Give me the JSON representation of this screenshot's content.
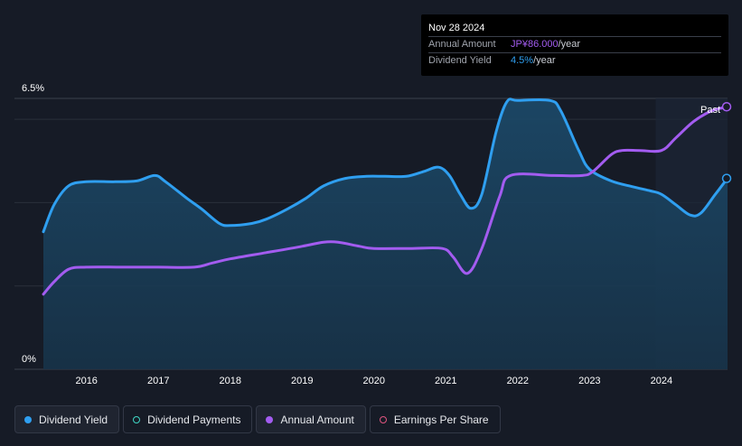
{
  "tooltip": {
    "date": "Nov 28 2024",
    "annual_amount_label": "Annual Amount",
    "annual_amount_value": "JP¥86.000",
    "annual_amount_unit": "/year",
    "dividend_yield_label": "Dividend Yield",
    "dividend_yield_value": "4.5%",
    "dividend_yield_unit": "/year"
  },
  "legend": [
    {
      "label": "Dividend Yield"
    },
    {
      "label": "Dividend Payments"
    },
    {
      "label": "Annual Amount"
    },
    {
      "label": "Earnings Per Share"
    }
  ],
  "colors": {
    "dividend_yield": "#2f9ff0",
    "dividend_payments": "#3fd7c4",
    "annual_amount": "#a35cf0",
    "earnings_per_share": "#e0557f"
  },
  "chart_data": {
    "type": "line",
    "title": "",
    "xlabel": "",
    "ylabel": "",
    "y_tick_labels": [
      "6.5%",
      "0%"
    ],
    "ylim": [
      0,
      6.5
    ],
    "xlim": [
      2015.4,
      2024.92
    ],
    "x_ticks": [
      2016,
      2017,
      2018,
      2019,
      2020,
      2021,
      2022,
      2023,
      2024
    ],
    "past_label": "Past",
    "past_region_start": 2023.92,
    "grid": true,
    "legend_position": "bottom",
    "series": [
      {
        "name": "Dividend Yield",
        "axis": "left",
        "points": [
          [
            2015.4,
            3.3
          ],
          [
            2015.55,
            3.95
          ],
          [
            2015.75,
            4.4
          ],
          [
            2016.0,
            4.5
          ],
          [
            2016.4,
            4.5
          ],
          [
            2016.7,
            4.52
          ],
          [
            2016.95,
            4.65
          ],
          [
            2017.1,
            4.5
          ],
          [
            2017.4,
            4.1
          ],
          [
            2017.6,
            3.85
          ],
          [
            2017.85,
            3.5
          ],
          [
            2018.0,
            3.45
          ],
          [
            2018.3,
            3.5
          ],
          [
            2018.5,
            3.6
          ],
          [
            2018.8,
            3.85
          ],
          [
            2019.05,
            4.1
          ],
          [
            2019.3,
            4.4
          ],
          [
            2019.6,
            4.58
          ],
          [
            2019.9,
            4.63
          ],
          [
            2020.15,
            4.63
          ],
          [
            2020.45,
            4.63
          ],
          [
            2020.7,
            4.75
          ],
          [
            2020.9,
            4.85
          ],
          [
            2021.05,
            4.65
          ],
          [
            2021.2,
            4.2
          ],
          [
            2021.35,
            3.86
          ],
          [
            2021.5,
            4.2
          ],
          [
            2021.7,
            5.7
          ],
          [
            2021.85,
            6.42
          ],
          [
            2022.0,
            6.45
          ],
          [
            2022.45,
            6.45
          ],
          [
            2022.6,
            6.2
          ],
          [
            2022.85,
            5.25
          ],
          [
            2023.0,
            4.8
          ],
          [
            2023.3,
            4.52
          ],
          [
            2023.6,
            4.38
          ],
          [
            2023.85,
            4.28
          ],
          [
            2024.0,
            4.2
          ],
          [
            2024.2,
            3.95
          ],
          [
            2024.4,
            3.7
          ],
          [
            2024.55,
            3.75
          ],
          [
            2024.75,
            4.2
          ],
          [
            2024.92,
            4.58
          ]
        ]
      },
      {
        "name": "Annual Amount",
        "axis": "right",
        "points": [
          [
            2015.4,
            1.8
          ],
          [
            2015.55,
            2.1
          ],
          [
            2015.75,
            2.4
          ],
          [
            2016.0,
            2.45
          ],
          [
            2016.5,
            2.45
          ],
          [
            2017.0,
            2.45
          ],
          [
            2017.5,
            2.45
          ],
          [
            2017.75,
            2.55
          ],
          [
            2018.0,
            2.65
          ],
          [
            2018.5,
            2.8
          ],
          [
            2019.0,
            2.95
          ],
          [
            2019.3,
            3.05
          ],
          [
            2019.5,
            3.05
          ],
          [
            2019.8,
            2.95
          ],
          [
            2020.0,
            2.9
          ],
          [
            2020.5,
            2.9
          ],
          [
            2020.95,
            2.9
          ],
          [
            2021.1,
            2.7
          ],
          [
            2021.3,
            2.3
          ],
          [
            2021.5,
            2.9
          ],
          [
            2021.75,
            4.15
          ],
          [
            2021.9,
            4.65
          ],
          [
            2022.5,
            4.65
          ],
          [
            2022.9,
            4.65
          ],
          [
            2023.05,
            4.75
          ],
          [
            2023.3,
            5.15
          ],
          [
            2023.45,
            5.25
          ],
          [
            2023.7,
            5.25
          ],
          [
            2024.0,
            5.25
          ],
          [
            2024.2,
            5.55
          ],
          [
            2024.45,
            5.95
          ],
          [
            2024.7,
            6.2
          ],
          [
            2024.92,
            6.3
          ]
        ]
      }
    ]
  }
}
